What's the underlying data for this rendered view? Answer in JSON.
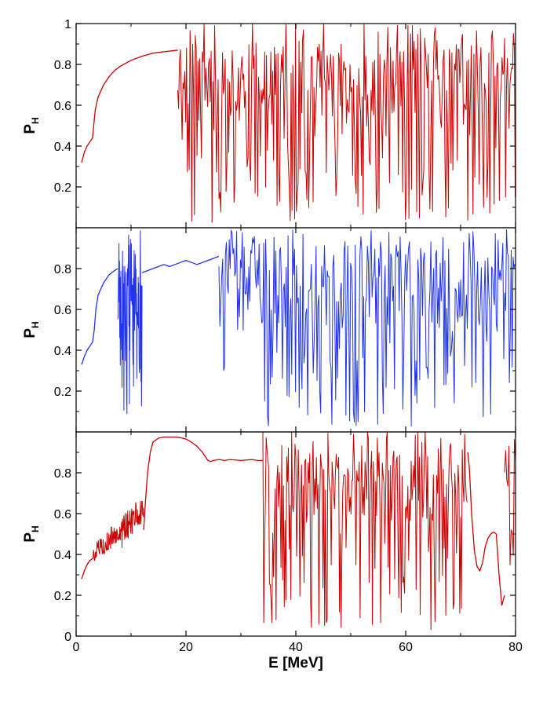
{
  "figure": {
    "xlabel": "E [MeV]"
  },
  "chart_data": [
    {
      "type": "line",
      "panel": "top",
      "ylabel_main": "P",
      "ylabel_sub": "H",
      "xlim": [
        0,
        80
      ],
      "ylim": [
        0,
        1
      ],
      "yticks": [
        "0.2",
        "0.4",
        "0.6",
        "0.8",
        "1"
      ],
      "xticks": [],
      "color": "#cc0000",
      "series": [
        {
          "x": [
            1,
            1.5,
            2,
            2.5,
            3,
            3.2,
            3.5,
            4,
            5,
            6,
            7,
            8,
            10,
            12,
            14,
            16,
            18,
            18.5
          ],
          "y": [
            0.32,
            0.37,
            0.4,
            0.42,
            0.44,
            0.5,
            0.58,
            0.64,
            0.7,
            0.74,
            0.77,
            0.79,
            0.82,
            0.84,
            0.855,
            0.862,
            0.868,
            0.87
          ]
        }
      ],
      "oscillatory": [
        {
          "x_start": 18.5,
          "x_end": 80,
          "y_min": 0.02,
          "y_max": 1.0,
          "bias_min": 0.55,
          "bias_max": 0.92,
          "period": 0.32,
          "seed": 11
        }
      ]
    },
    {
      "type": "line",
      "panel": "middle",
      "ylabel_main": "P",
      "ylabel_sub": "H",
      "xlim": [
        0,
        80
      ],
      "ylim": [
        0,
        1
      ],
      "yticks": [
        "0.2",
        "0.4",
        "0.6",
        "0.8"
      ],
      "xticks": [],
      "color": "#2233ee",
      "series": [
        {
          "x": [
            1,
            1.5,
            2,
            2.5,
            3,
            3.3,
            3.6,
            4,
            5,
            6,
            7,
            7.6
          ],
          "y": [
            0.33,
            0.37,
            0.4,
            0.42,
            0.44,
            0.5,
            0.6,
            0.67,
            0.73,
            0.77,
            0.79,
            0.8
          ]
        },
        {
          "x": [
            12,
            13,
            14,
            15,
            16,
            17,
            18,
            19,
            20,
            21,
            22,
            23,
            24,
            25,
            26
          ],
          "y": [
            0.78,
            0.79,
            0.8,
            0.81,
            0.82,
            0.81,
            0.82,
            0.83,
            0.84,
            0.83,
            0.82,
            0.83,
            0.84,
            0.85,
            0.86
          ]
        }
      ],
      "oscillatory": [
        {
          "x_start": 7.6,
          "x_end": 12,
          "y_min": 0.07,
          "y_max": 0.99,
          "bias_min": 0.3,
          "bias_max": 0.85,
          "period": 0.1,
          "seed": 23
        },
        {
          "x_start": 26,
          "x_end": 80,
          "y_min": 0.02,
          "y_max": 0.99,
          "bias_min": 0.5,
          "bias_max": 0.92,
          "period": 0.34,
          "seed": 37
        }
      ]
    },
    {
      "type": "line",
      "panel": "bottom",
      "ylabel_main": "P",
      "ylabel_sub": "H",
      "xlim": [
        0,
        80
      ],
      "ylim": [
        0,
        1
      ],
      "yticks": [
        "0",
        "0.2",
        "0.4",
        "0.6",
        "0.8"
      ],
      "xticks": [
        "0",
        "20",
        "40",
        "60",
        "80"
      ],
      "color": "#cc0000",
      "series": [
        {
          "x": [
            1,
            1.5,
            2,
            2.5,
            3
          ],
          "y": [
            0.28,
            0.32,
            0.35,
            0.37,
            0.38
          ]
        },
        {
          "x": [
            12.3,
            12.6,
            13,
            13.5,
            14,
            15,
            16,
            17,
            18,
            19,
            20,
            21,
            22,
            23,
            23.5,
            24,
            24.5,
            25,
            26,
            27,
            28,
            30,
            32,
            33,
            34
          ],
          "y": [
            0.52,
            0.65,
            0.8,
            0.9,
            0.95,
            0.97,
            0.975,
            0.975,
            0.975,
            0.972,
            0.965,
            0.95,
            0.93,
            0.9,
            0.88,
            0.86,
            0.855,
            0.86,
            0.865,
            0.86,
            0.865,
            0.86,
            0.865,
            0.86,
            0.86
          ]
        },
        {
          "x": [
            71.3,
            71.6,
            72,
            72.5,
            73,
            73.5,
            74,
            74.5,
            75,
            75.5,
            76,
            76.5
          ],
          "y": [
            0.9,
            0.82,
            0.6,
            0.42,
            0.34,
            0.32,
            0.36,
            0.44,
            0.48,
            0.5,
            0.51,
            0.5
          ]
        },
        {
          "x": [
            76.5,
            77,
            77.5,
            78
          ],
          "y": [
            0.5,
            0.3,
            0.15,
            0.2
          ]
        }
      ],
      "oscillatory": [
        {
          "x_start": 3,
          "x_end": 12.3,
          "y_min": 0.34,
          "y_max": 0.66,
          "bias_min": 0.4,
          "bias_max": 0.62,
          "period": 0.16,
          "seed": 5,
          "amp": 0.04
        },
        {
          "x_start": 34,
          "x_end": 71.3,
          "y_min": 0.02,
          "y_max": 1.0,
          "bias_min": 0.55,
          "bias_max": 0.92,
          "period": 0.3,
          "seed": 41
        },
        {
          "x_start": 78,
          "x_end": 80,
          "y_min": 0.02,
          "y_max": 0.98,
          "bias_min": 0.5,
          "bias_max": 0.95,
          "period": 0.4,
          "seed": 59
        }
      ]
    }
  ]
}
